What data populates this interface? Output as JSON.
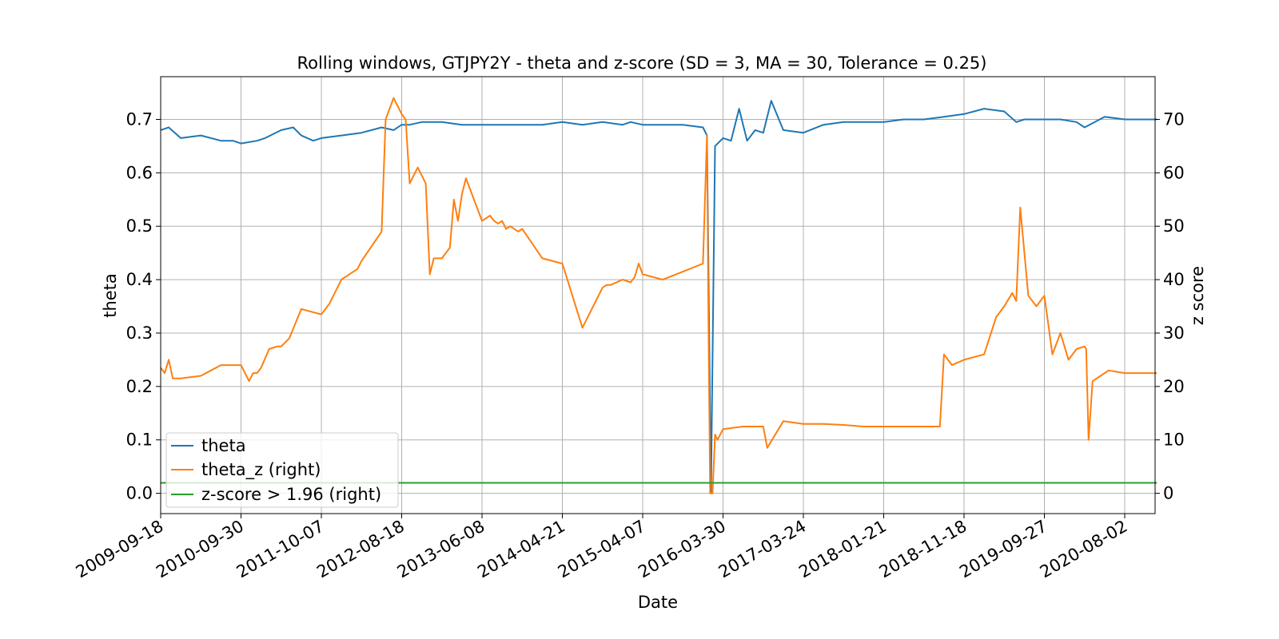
{
  "chart_data": {
    "type": "line",
    "title": "Rolling windows, GTJPY2Y - theta and z-score (SD = 3, MA = 30, Tolerance  = 0.25)",
    "xlabel": "Date",
    "ylabel_left": "theta",
    "ylabel_right": "z score",
    "x_tick_labels": [
      "2009-09-18",
      "2010-09-30",
      "2011-10-07",
      "2012-08-18",
      "2013-06-08",
      "2014-04-21",
      "2015-04-07",
      "2016-03-30",
      "2017-03-24",
      "2018-01-21",
      "2018-11-18",
      "2019-09-27",
      "2020-08-02"
    ],
    "y_left_ticks": [
      "0.0",
      "0.1",
      "0.2",
      "0.3",
      "0.4",
      "0.5",
      "0.6",
      "0.7"
    ],
    "y_right_ticks": [
      "0",
      "10",
      "20",
      "30",
      "40",
      "50",
      "60",
      "70"
    ],
    "ylim_left": [
      -0.038,
      0.78
    ],
    "ylim_right": [
      -3.8,
      78
    ],
    "x_range_ticks": [
      0,
      12.4
    ],
    "grid": true,
    "legend_position": "lower left",
    "colors": {
      "theta": "#1f77b4",
      "theta_z": "#ff7f0e",
      "threshold": "#2ca02c"
    },
    "series": [
      {
        "name": "theta",
        "axis": "left",
        "color": "#1f77b4",
        "x": [
          0,
          0.1,
          0.25,
          0.5,
          0.75,
          0.9,
          1.0,
          1.2,
          1.3,
          1.5,
          1.65,
          1.75,
          1.9,
          2.0,
          2.25,
          2.5,
          2.75,
          2.9,
          3.0,
          3.1,
          3.25,
          3.5,
          3.75,
          4.0,
          4.25,
          4.5,
          4.75,
          5.0,
          5.25,
          5.5,
          5.75,
          5.85,
          6.0,
          6.25,
          6.5,
          6.75,
          6.8,
          6.85,
          6.9,
          7.0,
          7.1,
          7.2,
          7.25,
          7.3,
          7.4,
          7.5,
          7.6,
          7.75,
          8.0,
          8.25,
          8.5,
          9.0,
          9.25,
          9.5,
          9.75,
          10.0,
          10.25,
          10.5,
          10.65,
          10.75,
          11.0,
          11.2,
          11.4,
          11.5,
          11.75,
          12.0,
          12.25,
          12.4
        ],
        "y": [
          0.68,
          0.685,
          0.665,
          0.67,
          0.66,
          0.66,
          0.655,
          0.66,
          0.665,
          0.68,
          0.685,
          0.67,
          0.66,
          0.665,
          0.67,
          0.675,
          0.685,
          0.68,
          0.69,
          0.69,
          0.695,
          0.695,
          0.69,
          0.69,
          0.69,
          0.69,
          0.69,
          0.695,
          0.69,
          0.695,
          0.69,
          0.695,
          0.69,
          0.69,
          0.69,
          0.685,
          0.67,
          0.002,
          0.65,
          0.665,
          0.66,
          0.72,
          0.69,
          0.66,
          0.68,
          0.675,
          0.735,
          0.68,
          0.675,
          0.69,
          0.695,
          0.695,
          0.7,
          0.7,
          0.705,
          0.71,
          0.72,
          0.715,
          0.695,
          0.7,
          0.7,
          0.7,
          0.695,
          0.685,
          0.705,
          0.7,
          0.7,
          0.7
        ]
      },
      {
        "name": "theta_z (right)",
        "axis": "right",
        "color": "#ff7f0e",
        "x": [
          0,
          0.05,
          0.1,
          0.15,
          0.2,
          0.25,
          0.5,
          0.75,
          1.0,
          1.1,
          1.15,
          1.2,
          1.25,
          1.35,
          1.45,
          1.5,
          1.6,
          1.75,
          2.0,
          2.1,
          2.25,
          2.45,
          2.5,
          2.75,
          2.8,
          2.9,
          3.0,
          3.05,
          3.1,
          3.2,
          3.3,
          3.35,
          3.4,
          3.5,
          3.6,
          3.65,
          3.7,
          3.75,
          3.8,
          4.0,
          4.05,
          4.1,
          4.15,
          4.2,
          4.25,
          4.3,
          4.35,
          4.45,
          4.5,
          4.75,
          5.0,
          5.25,
          5.5,
          5.55,
          5.6,
          5.75,
          5.85,
          5.9,
          5.95,
          6.0,
          6.25,
          6.5,
          6.75,
          6.8,
          6.82,
          6.84,
          6.87,
          6.9,
          6.93,
          7.0,
          7.25,
          7.5,
          7.55,
          7.75,
          8.0,
          8.25,
          8.5,
          8.75,
          9.0,
          9.25,
          9.5,
          9.7,
          9.75,
          9.85,
          10.0,
          10.25,
          10.4,
          10.5,
          10.6,
          10.65,
          10.7,
          10.8,
          10.9,
          11.0,
          11.1,
          11.2,
          11.3,
          11.4,
          11.5,
          11.52,
          11.55,
          11.6,
          11.7,
          11.8,
          12.0,
          12.25,
          12.4
        ],
        "y": [
          23.5,
          22.5,
          25.0,
          21.5,
          21.5,
          21.5,
          22.0,
          24.0,
          24.0,
          21.0,
          22.5,
          22.5,
          23.5,
          27.0,
          27.5,
          27.5,
          29.0,
          34.5,
          33.5,
          35.5,
          40.0,
          42.0,
          43.5,
          49.0,
          70.0,
          74.0,
          71.0,
          70.0,
          58.0,
          61.0,
          58.0,
          41.0,
          44.0,
          44.0,
          46.0,
          55.0,
          51.0,
          56.0,
          59.0,
          51.0,
          51.5,
          52.0,
          51.0,
          50.5,
          51.0,
          49.5,
          50.0,
          49.0,
          49.5,
          44.0,
          43.0,
          31.0,
          38.5,
          39.0,
          39.0,
          40.0,
          39.5,
          40.5,
          43.0,
          41.0,
          40.0,
          41.5,
          43.0,
          67.0,
          30.0,
          0.0,
          0.0,
          11.0,
          10.0,
          12.0,
          12.5,
          12.5,
          8.5,
          13.5,
          13.0,
          13.0,
          12.8,
          12.5,
          12.5,
          12.5,
          12.5,
          12.5,
          26.0,
          24.0,
          25.0,
          26.0,
          33.0,
          35.0,
          37.5,
          36.0,
          53.5,
          37.0,
          35.0,
          37.0,
          26.0,
          30.0,
          25.0,
          27.0,
          27.5,
          27.0,
          10.0,
          21.0,
          22.0,
          23.0,
          22.5,
          22.5,
          22.5
        ]
      },
      {
        "name": "z-score > 1.96 (right)",
        "axis": "right",
        "color": "#2ca02c",
        "x": [
          0,
          12.4
        ],
        "y": [
          1.96,
          1.96
        ]
      }
    ]
  }
}
